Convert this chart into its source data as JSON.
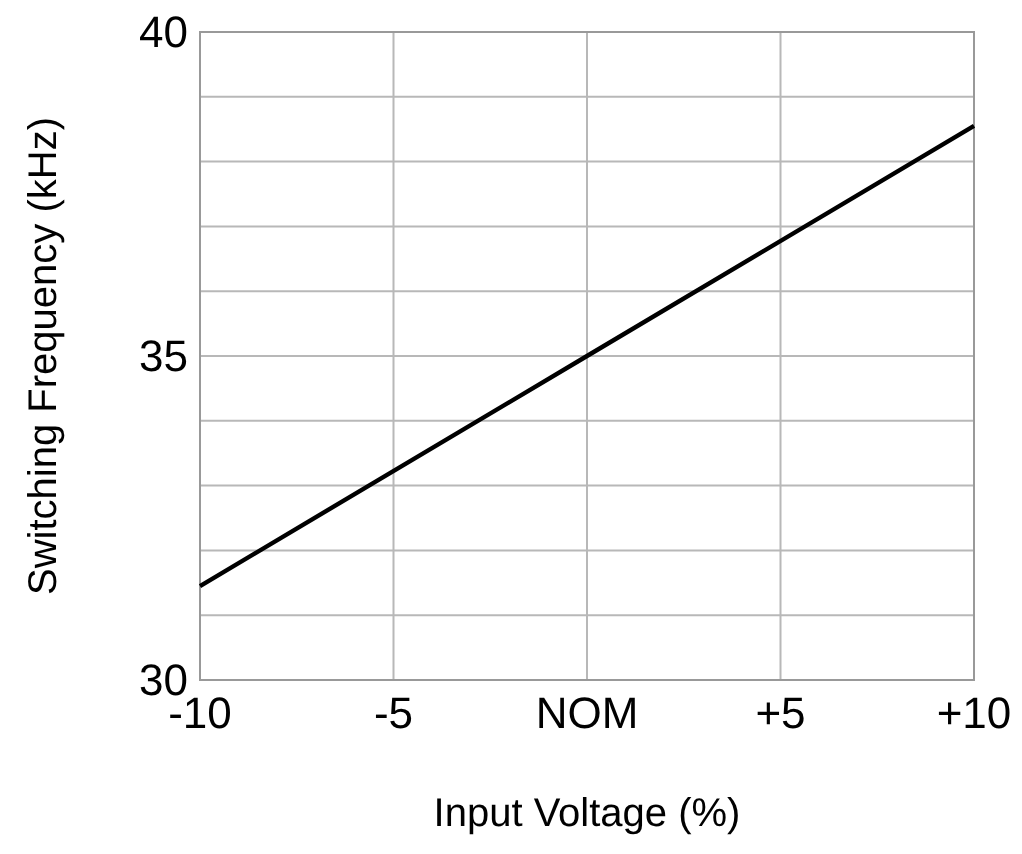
{
  "chart_data": {
    "type": "line",
    "xlabel": "Input Voltage (%)",
    "ylabel": "Switching Frequency (kHz)",
    "x": [
      -10,
      0,
      10
    ],
    "series": [
      {
        "color": "#000000",
        "values": [
          31.45,
          35,
          38.55
        ]
      }
    ],
    "xlim": [
      -10,
      10
    ],
    "ylim": [
      30,
      40
    ],
    "xticks": [
      -10,
      -5,
      {
        "value": 0,
        "label": "NOM"
      },
      {
        "value": 5,
        "label": "+5"
      },
      {
        "value": 10,
        "label": "+10"
      }
    ],
    "yticks": [
      30,
      {
        "value": 31,
        "label": null
      },
      {
        "value": 32,
        "label": null
      },
      {
        "value": 33,
        "label": null
      },
      {
        "value": 34,
        "label": null
      },
      35,
      {
        "value": 36,
        "label": null
      },
      {
        "value": 37,
        "label": null
      },
      {
        "value": 38,
        "label": null
      },
      {
        "value": 39,
        "label": null
      },
      40
    ],
    "grid": true,
    "marker": "none",
    "line_style": "solid"
  }
}
